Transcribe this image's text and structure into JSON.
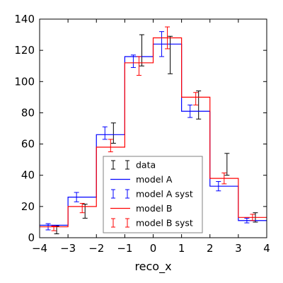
{
  "chart_data": {
    "type": "line",
    "title": "",
    "xlabel": "reco_x",
    "ylabel": "",
    "xlim": [
      -4,
      4
    ],
    "ylim": [
      0,
      140
    ],
    "xticks": [
      -4,
      -3,
      -2,
      -1,
      0,
      1,
      2,
      3,
      4
    ],
    "yticks": [
      0,
      20,
      40,
      60,
      80,
      100,
      120,
      140
    ],
    "xtick_labels": [
      "−4",
      "−3",
      "−2",
      "−1",
      "0",
      "1",
      "2",
      "3",
      "4"
    ],
    "ytick_labels": [
      "0",
      "20",
      "40",
      "60",
      "80",
      "100",
      "120",
      "140"
    ],
    "bin_edges": [
      -4,
      -3,
      -2,
      -1,
      0,
      1,
      2,
      3,
      4
    ],
    "bin_centers": [
      -3.5,
      -2.5,
      -1.5,
      -0.5,
      0.5,
      1.5,
      2.5,
      3.5
    ],
    "grid": false,
    "legend_position": "lower-center",
    "series": [
      {
        "name": "data",
        "kind": "errorbar",
        "color": "#000000",
        "x_offset": 0.1,
        "values": [
          5,
          17,
          67,
          120,
          117,
          85,
          47,
          13
        ],
        "errors": [
          2.5,
          4.5,
          6.5,
          10,
          12,
          9,
          7,
          3
        ]
      },
      {
        "name": "model A",
        "kind": "step",
        "color": "#0000ff",
        "values": [
          8,
          26,
          66,
          116,
          124,
          81,
          33,
          11
        ]
      },
      {
        "name": "model A syst",
        "kind": "errorbar",
        "color": "#0000ff",
        "x_offset": -0.2,
        "values": [
          7,
          26,
          67,
          113,
          124,
          81,
          33,
          11
        ],
        "errors": [
          2,
          3,
          4,
          4,
          8,
          4,
          3,
          1.5
        ]
      },
      {
        "name": "model B",
        "kind": "step",
        "color": "#ff0000",
        "values": [
          7,
          20,
          58,
          112,
          128,
          90,
          38,
          13
        ]
      },
      {
        "name": "model B syst",
        "kind": "errorbar",
        "color": "#ff0000",
        "x_offset": 0,
        "values": [
          6,
          19,
          59,
          110,
          128,
          89,
          38,
          13
        ],
        "errors": [
          1.5,
          3,
          4,
          6,
          7,
          4,
          3.5,
          2
        ]
      }
    ]
  }
}
